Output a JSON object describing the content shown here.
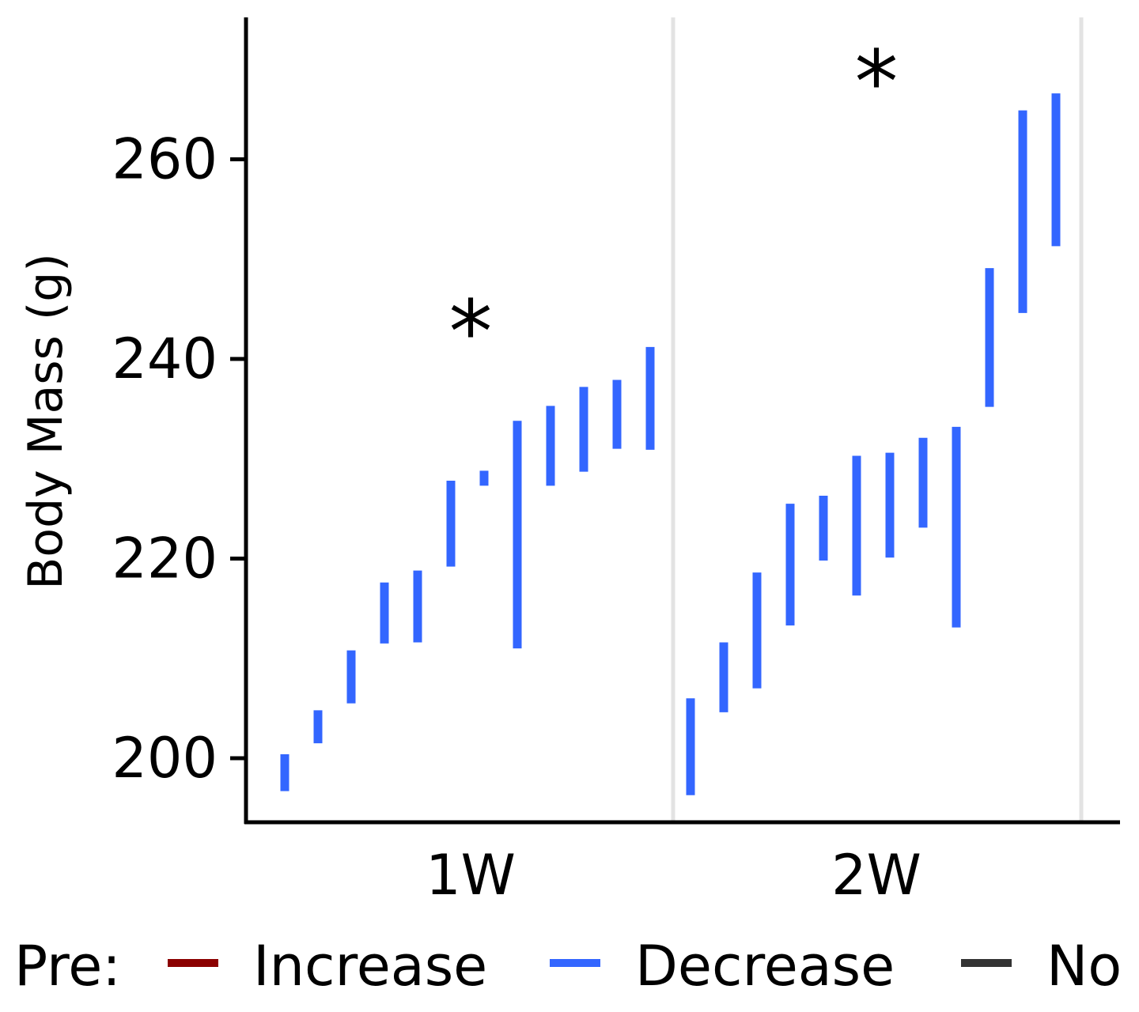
{
  "chart_data": {
    "type": "range",
    "ylabel": "Body Mass (g)",
    "ylim": [
      193.5,
      274
    ],
    "yticks": [
      "200",
      "220",
      "240",
      "260"
    ],
    "categories": [
      "1W",
      "2W"
    ],
    "grid": "vertical separators between groups",
    "annotations": [
      {
        "group": "1W",
        "text": "*",
        "y": 243.5
      },
      {
        "group": "2W",
        "text": "*",
        "y": 268.5
      }
    ],
    "legend": {
      "title": "Pre:",
      "position": "bottom",
      "entries": [
        {
          "label": "Increase",
          "color": "#8B0000"
        },
        {
          "label": "Decrease",
          "color": "#3366FF"
        },
        {
          "label": "No",
          "color": "#333333"
        }
      ]
    },
    "series": [
      {
        "category": "1W",
        "status": "Decrease",
        "ranges": [
          [
            196.7,
            200.4
          ],
          [
            201.5,
            204.8
          ],
          [
            205.5,
            210.8
          ],
          [
            211.5,
            217.6
          ],
          [
            211.6,
            218.8
          ],
          [
            219.2,
            227.8
          ],
          [
            227.3,
            228.8
          ],
          [
            211.0,
            233.8
          ],
          [
            227.3,
            235.3
          ],
          [
            228.7,
            237.2
          ],
          [
            231.0,
            237.9
          ],
          [
            230.9,
            241.2
          ]
        ]
      },
      {
        "category": "2W",
        "status": "Decrease",
        "ranges": [
          [
            196.3,
            206.0
          ],
          [
            204.6,
            211.6
          ],
          [
            207.0,
            218.6
          ],
          [
            213.3,
            225.5
          ],
          [
            219.8,
            226.3
          ],
          [
            216.3,
            230.3
          ],
          [
            220.1,
            230.6
          ],
          [
            223.1,
            232.1
          ],
          [
            213.1,
            233.2
          ],
          [
            235.2,
            249.1
          ],
          [
            244.6,
            264.9
          ],
          [
            251.3,
            266.6
          ]
        ]
      }
    ]
  }
}
